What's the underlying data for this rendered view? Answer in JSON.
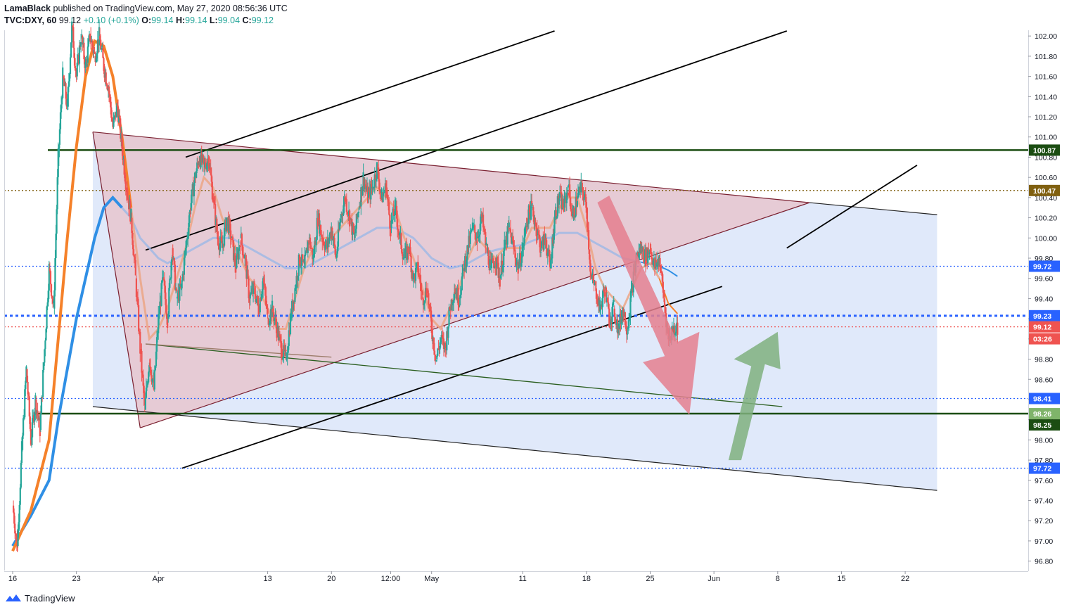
{
  "header": {
    "author": "LamaBlack",
    "published": "published on TradingView.com, May 27, 2020 08:56:36 UTC",
    "symbol": "TVC:DXY, 60",
    "last": "99.12",
    "change": "+0.10 (+0.1%)",
    "o_label": "O:",
    "o": "99.14",
    "h_label": "H:",
    "h": "99.14",
    "l_label": "L:",
    "l": "99.04",
    "c_label": "C:",
    "c": "99.12"
  },
  "footer": {
    "brand": "TradingView"
  },
  "colors": {
    "up": "#26a69a",
    "down": "#ef5350",
    "ema_fast": "#f5812a",
    "ema_slow": "#2f8fe5",
    "triangle": "#e8c0c8",
    "channel": "#d6e2f8",
    "support": "#1b4d12",
    "arrow_down": "#e47f8e",
    "arrow_up": "#7fb07e"
  },
  "chart_data": {
    "type": "candlestick",
    "y_scale": {
      "min": 96.7,
      "max": 102.05
    },
    "y_ticks": [
      "96.80",
      "97.00",
      "97.20",
      "97.40",
      "97.60",
      "97.80",
      "98.00",
      "98.20",
      "98.40",
      "98.60",
      "98.80",
      "99.00",
      "99.20",
      "99.40",
      "99.60",
      "99.80",
      "100.00",
      "100.20",
      "100.40",
      "100.60",
      "100.80",
      "101.00",
      "101.20",
      "101.40",
      "101.60",
      "101.80",
      "102.00"
    ],
    "x_ticks": [
      {
        "label": "16",
        "d": 0
      },
      {
        "label": "23",
        "d": 7
      },
      {
        "label": "Apr",
        "d": 16
      },
      {
        "label": "13",
        "d": 28
      },
      {
        "label": "20",
        "d": 35
      },
      {
        "label": "12:00",
        "d": 41.5
      },
      {
        "label": "May",
        "d": 46
      },
      {
        "label": "11",
        "d": 56
      },
      {
        "label": "18",
        "d": 63
      },
      {
        "label": "25",
        "d": 70
      },
      {
        "label": "Jun",
        "d": 77
      },
      {
        "label": "8",
        "d": 84
      },
      {
        "label": "15",
        "d": 91
      },
      {
        "label": "22",
        "d": 98
      }
    ],
    "price_path": [
      [
        0,
        97.35
      ],
      [
        0.5,
        96.95
      ],
      [
        1,
        97.9
      ],
      [
        1.5,
        98.7
      ],
      [
        2,
        98.0
      ],
      [
        2.5,
        98.4
      ],
      [
        3,
        98.1
      ],
      [
        3.5,
        98.9
      ],
      [
        4,
        99.7
      ],
      [
        4.5,
        99.3
      ],
      [
        5,
        100.8
      ],
      [
        5.5,
        101.6
      ],
      [
        6,
        101.3
      ],
      [
        6.5,
        102.1
      ],
      [
        7,
        101.6
      ],
      [
        7.5,
        102.0
      ],
      [
        8,
        101.7
      ],
      [
        8.5,
        102.0
      ],
      [
        9,
        101.8
      ],
      [
        9.5,
        102.0
      ],
      [
        10,
        101.7
      ],
      [
        10.5,
        101.5
      ],
      [
        11,
        101.1
      ],
      [
        11.5,
        101.3
      ],
      [
        12,
        100.9
      ],
      [
        12.5,
        100.5
      ],
      [
        13,
        100.2
      ],
      [
        13.5,
        99.6
      ],
      [
        14,
        98.9
      ],
      [
        14.5,
        98.3
      ],
      [
        15,
        98.8
      ],
      [
        15.5,
        98.5
      ],
      [
        16,
        99.2
      ],
      [
        16.5,
        99.6
      ],
      [
        17,
        99.2
      ],
      [
        17.5,
        99.9
      ],
      [
        18,
        99.4
      ],
      [
        18.5,
        99.5
      ],
      [
        19,
        99.9
      ],
      [
        19.5,
        100.3
      ],
      [
        20,
        100.6
      ],
      [
        20.5,
        100.8
      ],
      [
        21,
        100.7
      ],
      [
        21.5,
        100.8
      ],
      [
        22,
        100.4
      ],
      [
        22.5,
        100.0
      ],
      [
        23,
        99.9
      ],
      [
        23.5,
        100.2
      ],
      [
        24,
        100.0
      ],
      [
        24.5,
        99.7
      ],
      [
        25,
        100.0
      ],
      [
        25.5,
        99.8
      ],
      [
        26,
        99.4
      ],
      [
        26.5,
        99.5
      ],
      [
        27,
        99.3
      ],
      [
        27.5,
        99.6
      ],
      [
        28,
        99.2
      ],
      [
        28.5,
        99.3
      ],
      [
        29,
        99.1
      ],
      [
        29.5,
        98.9
      ],
      [
        30,
        98.8
      ],
      [
        30.5,
        99.2
      ],
      [
        31,
        99.5
      ],
      [
        31.5,
        99.8
      ],
      [
        32,
        99.7
      ],
      [
        32.5,
        100.0
      ],
      [
        33,
        99.8
      ],
      [
        33.5,
        100.2
      ],
      [
        34,
        100.0
      ],
      [
        34.5,
        99.9
      ],
      [
        35,
        100.1
      ],
      [
        35.5,
        99.8
      ],
      [
        36,
        100.2
      ],
      [
        36.5,
        100.4
      ],
      [
        37,
        100.2
      ],
      [
        37.5,
        100.0
      ],
      [
        38,
        100.3
      ],
      [
        38.5,
        100.6
      ],
      [
        39,
        100.4
      ],
      [
        39.5,
        100.5
      ],
      [
        40,
        100.7
      ],
      [
        40.5,
        100.4
      ],
      [
        41,
        100.5
      ],
      [
        41.5,
        100.1
      ],
      [
        42,
        100.3
      ],
      [
        42.5,
        100.0
      ],
      [
        43,
        99.8
      ],
      [
        43.5,
        99.9
      ],
      [
        44,
        99.6
      ],
      [
        44.5,
        99.7
      ],
      [
        45,
        99.4
      ],
      [
        45.5,
        99.5
      ],
      [
        46,
        99.1
      ],
      [
        46.5,
        98.8
      ],
      [
        47,
        99.0
      ],
      [
        47.5,
        98.9
      ],
      [
        48,
        99.3
      ],
      [
        48.5,
        99.5
      ],
      [
        49,
        99.4
      ],
      [
        49.5,
        99.7
      ],
      [
        50,
        99.9
      ],
      [
        50.5,
        100.1
      ],
      [
        51,
        100.0
      ],
      [
        51.5,
        100.2
      ],
      [
        52,
        99.9
      ],
      [
        52.5,
        99.7
      ],
      [
        53,
        99.8
      ],
      [
        53.5,
        99.6
      ],
      [
        54,
        99.9
      ],
      [
        54.5,
        100.1
      ],
      [
        55,
        99.9
      ],
      [
        55.5,
        99.7
      ],
      [
        56,
        99.9
      ],
      [
        56.5,
        100.2
      ],
      [
        57,
        100.3
      ],
      [
        57.5,
        100.1
      ],
      [
        58,
        99.9
      ],
      [
        58.5,
        100.0
      ],
      [
        59,
        99.7
      ],
      [
        59.5,
        100.2
      ],
      [
        60,
        100.4
      ],
      [
        60.5,
        100.3
      ],
      [
        61,
        100.5
      ],
      [
        61.5,
        100.2
      ],
      [
        62,
        100.4
      ],
      [
        62.5,
        100.5
      ],
      [
        63,
        100.3
      ],
      [
        63.5,
        99.6
      ],
      [
        64,
        99.5
      ],
      [
        64.5,
        99.3
      ],
      [
        65,
        99.5
      ],
      [
        65.5,
        99.2
      ],
      [
        66,
        99.3
      ],
      [
        66.5,
        99.1
      ],
      [
        67,
        99.3
      ],
      [
        67.5,
        99.1
      ],
      [
        68,
        99.5
      ],
      [
        68.5,
        99.8
      ],
      [
        69,
        99.9
      ],
      [
        69.5,
        99.8
      ],
      [
        70,
        99.9
      ],
      [
        70.5,
        99.7
      ],
      [
        71,
        99.8
      ],
      [
        71.5,
        99.4
      ],
      [
        72,
        99.0
      ],
      [
        72.5,
        99.1
      ],
      [
        73,
        99.12
      ]
    ],
    "ema_fast": [
      [
        0,
        96.9
      ],
      [
        2,
        97.3
      ],
      [
        4,
        98.0
      ],
      [
        5,
        99.0
      ],
      [
        6,
        100.0
      ],
      [
        7,
        100.9
      ],
      [
        8,
        101.6
      ],
      [
        9,
        101.95
      ],
      [
        10,
        101.9
      ],
      [
        11,
        101.6
      ],
      [
        12,
        101.0
      ],
      [
        13,
        100.3
      ],
      [
        14,
        99.6
      ],
      [
        15,
        99.0
      ],
      [
        16,
        99.1
      ],
      [
        17,
        99.3
      ],
      [
        18,
        99.6
      ],
      [
        19,
        99.9
      ],
      [
        20,
        100.3
      ],
      [
        21,
        100.6
      ],
      [
        22,
        100.5
      ],
      [
        23,
        100.2
      ],
      [
        24,
        100.0
      ],
      [
        25,
        99.8
      ],
      [
        26,
        99.6
      ],
      [
        27,
        99.5
      ],
      [
        28,
        99.3
      ],
      [
        29,
        99.1
      ],
      [
        30,
        99.1
      ],
      [
        31,
        99.4
      ],
      [
        32,
        99.7
      ],
      [
        33,
        99.9
      ],
      [
        34,
        100.0
      ],
      [
        35,
        100.0
      ],
      [
        36,
        100.1
      ],
      [
        37,
        100.2
      ],
      [
        38,
        100.3
      ],
      [
        39,
        100.4
      ],
      [
        40,
        100.5
      ],
      [
        41,
        100.4
      ],
      [
        42,
        100.3
      ],
      [
        43,
        100.0
      ],
      [
        44,
        99.8
      ],
      [
        45,
        99.5
      ],
      [
        46,
        99.2
      ],
      [
        47,
        99.1
      ],
      [
        48,
        99.3
      ],
      [
        49,
        99.5
      ],
      [
        50,
        99.8
      ],
      [
        51,
        100.0
      ],
      [
        52,
        99.9
      ],
      [
        53,
        99.8
      ],
      [
        54,
        99.9
      ],
      [
        55,
        99.9
      ],
      [
        56,
        99.9
      ],
      [
        57,
        100.1
      ],
      [
        58,
        100.1
      ],
      [
        59,
        100.1
      ],
      [
        60,
        100.3
      ],
      [
        61,
        100.4
      ],
      [
        62,
        100.4
      ],
      [
        63,
        100.1
      ],
      [
        64,
        99.7
      ],
      [
        65,
        99.5
      ],
      [
        66,
        99.4
      ],
      [
        67,
        99.3
      ],
      [
        68,
        99.5
      ],
      [
        69,
        99.7
      ],
      [
        70,
        99.75
      ],
      [
        71,
        99.6
      ],
      [
        72,
        99.35
      ],
      [
        73,
        99.25
      ]
    ],
    "ema_slow": [
      [
        0,
        96.95
      ],
      [
        2,
        97.25
      ],
      [
        4,
        97.6
      ],
      [
        5,
        98.2
      ],
      [
        6,
        98.7
      ],
      [
        7,
        99.2
      ],
      [
        8,
        99.6
      ],
      [
        9,
        100.0
      ],
      [
        10,
        100.3
      ],
      [
        11,
        100.4
      ],
      [
        12,
        100.3
      ],
      [
        13,
        100.2
      ],
      [
        14,
        100.0
      ],
      [
        15,
        99.9
      ],
      [
        16,
        99.8
      ],
      [
        17,
        99.75
      ],
      [
        18,
        99.8
      ],
      [
        19,
        99.85
      ],
      [
        20,
        99.9
      ],
      [
        21,
        99.95
      ],
      [
        22,
        100.0
      ],
      [
        23,
        100.0
      ],
      [
        24,
        100.0
      ],
      [
        25,
        99.95
      ],
      [
        26,
        99.9
      ],
      [
        27,
        99.85
      ],
      [
        28,
        99.8
      ],
      [
        29,
        99.75
      ],
      [
        30,
        99.7
      ],
      [
        31,
        99.7
      ],
      [
        32,
        99.7
      ],
      [
        33,
        99.75
      ],
      [
        34,
        99.8
      ],
      [
        35,
        99.85
      ],
      [
        36,
        99.9
      ],
      [
        37,
        99.95
      ],
      [
        38,
        100.0
      ],
      [
        39,
        100.05
      ],
      [
        40,
        100.1
      ],
      [
        41,
        100.1
      ],
      [
        42,
        100.1
      ],
      [
        43,
        100.05
      ],
      [
        44,
        100.0
      ],
      [
        45,
        99.9
      ],
      [
        46,
        99.8
      ],
      [
        47,
        99.75
      ],
      [
        48,
        99.7
      ],
      [
        49,
        99.72
      ],
      [
        50,
        99.75
      ],
      [
        51,
        99.8
      ],
      [
        52,
        99.85
      ],
      [
        53,
        99.88
      ],
      [
        54,
        99.9
      ],
      [
        55,
        99.92
      ],
      [
        56,
        99.93
      ],
      [
        57,
        99.97
      ],
      [
        58,
        100.0
      ],
      [
        59,
        100.0
      ],
      [
        60,
        100.05
      ],
      [
        61,
        100.05
      ],
      [
        62,
        100.05
      ],
      [
        63,
        100.0
      ],
      [
        64,
        99.95
      ],
      [
        65,
        99.9
      ],
      [
        66,
        99.85
      ],
      [
        67,
        99.8
      ],
      [
        68,
        99.78
      ],
      [
        69,
        99.76
      ],
      [
        70,
        99.74
      ],
      [
        71,
        99.72
      ],
      [
        72,
        99.68
      ],
      [
        73,
        99.62
      ]
    ],
    "horizontal_levels": [
      {
        "price": 100.87,
        "label": "100.87",
        "style": "solid",
        "color": "#1b4d12"
      },
      {
        "price": 100.47,
        "label": "100.47",
        "style": "dotted",
        "color": "#806010"
      },
      {
        "price": 99.72,
        "label": "99.72",
        "style": "dotted",
        "color": "#2962ff"
      },
      {
        "price": 99.23,
        "label": "99.23",
        "style": "dotted-thick",
        "color": "#2962ff"
      },
      {
        "price": 99.12,
        "label": "99.12",
        "style": "dotted",
        "color": "#ef5350",
        "sub": "03:26"
      },
      {
        "price": 98.41,
        "label": "98.41",
        "style": "dotted",
        "color": "#2962ff"
      },
      {
        "price": 98.26,
        "label": "98.26",
        "style": "solid",
        "color": "#1b4d12"
      },
      {
        "price": 98.25,
        "label": "98.25",
        "style": "badge",
        "color": "#1b4d12"
      },
      {
        "price": 97.72,
        "label": "97.72",
        "style": "dotted",
        "color": "#2962ff"
      }
    ]
  }
}
